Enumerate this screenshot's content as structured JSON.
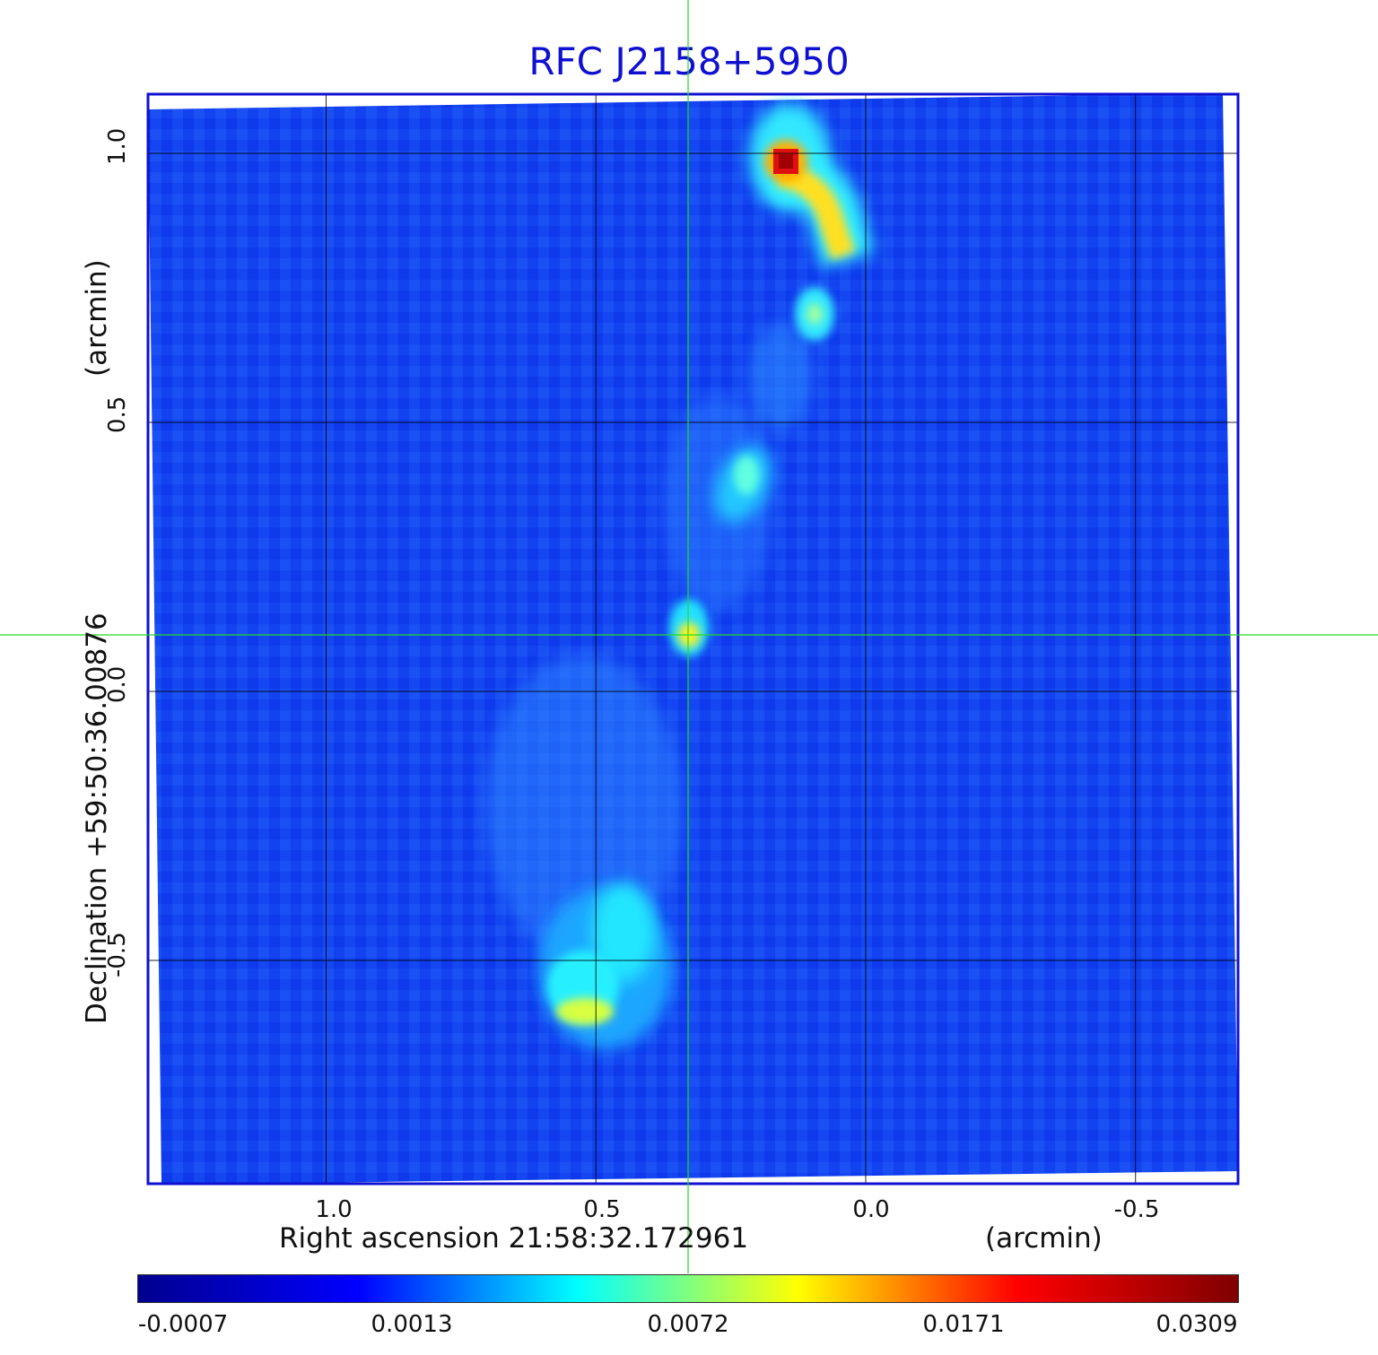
{
  "title": "RFC J2158+5950",
  "x_axis": {
    "label": "Right ascension  21:58:32.172961",
    "unit": "(arcmin)",
    "ticks": [
      "1.0",
      "0.5",
      "0.0",
      "-0.5"
    ],
    "range": [
      1.33,
      -0.69
    ]
  },
  "y_axis": {
    "label": "Declination  +59:50:36.00876",
    "unit": "(arcmin)",
    "ticks": [
      "1.0",
      "0.5",
      "0.0",
      "-0.5"
    ],
    "range": [
      -0.915,
      1.11
    ]
  },
  "colorbar": {
    "colormap": "jet",
    "ticks": [
      "-0.0007",
      "0.0013",
      "0.0072",
      "0.0171",
      "0.0309"
    ],
    "colors": [
      "#00008f",
      "#0000ff",
      "#00ffff",
      "#ffff00",
      "#ff0000",
      "#800000"
    ]
  },
  "image": {
    "background_color": "#1040f0",
    "frame_color": "#1010d0",
    "grid_color": "#000000",
    "crosshair_color": "#22dd22",
    "crosshair": {
      "x_arcmin": 0.33,
      "y_arcmin": 0.1
    },
    "features": [
      {
        "name": "northern-lobe-peak",
        "x_arcmin": 0.15,
        "y_arcmin": 0.98,
        "level": "max"
      },
      {
        "name": "northern-lobe-arc",
        "x_arcmin": 0.06,
        "y_arcmin": 0.85,
        "level": "high"
      },
      {
        "name": "northern-knot",
        "x_arcmin": 0.1,
        "y_arcmin": 0.7,
        "level": "medium"
      },
      {
        "name": "jet-knot",
        "x_arcmin": 0.23,
        "y_arcmin": 0.39,
        "level": "medium"
      },
      {
        "name": "core",
        "x_arcmin": 0.33,
        "y_arcmin": 0.1,
        "level": "high"
      },
      {
        "name": "southern-lobe",
        "x_arcmin": 0.51,
        "y_arcmin": -0.58,
        "level": "high"
      }
    ]
  }
}
